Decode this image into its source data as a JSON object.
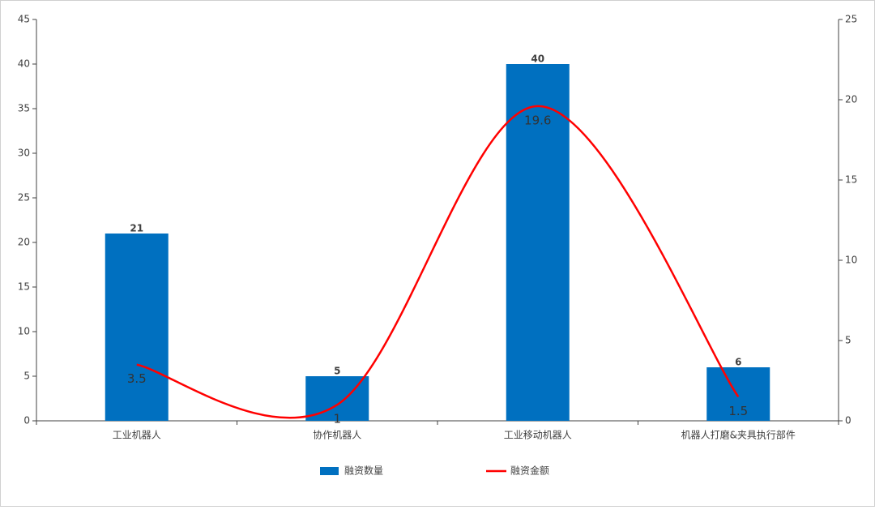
{
  "chart_data": {
    "type": "bar",
    "categories": [
      "工业机器人",
      "协作机器人",
      "工业移动机器人",
      "机器人打磨&夹具执行部件"
    ],
    "series": [
      {
        "name": "融资数量",
        "type": "bar",
        "color": "#0070c0",
        "values": [
          21,
          5,
          40,
          6
        ]
      },
      {
        "name": "融资金额",
        "type": "line",
        "axis": "y2",
        "color": "#ff0000",
        "values": [
          3.5,
          1,
          19.6,
          1.5
        ]
      }
    ],
    "ylim": [
      0,
      45
    ],
    "yticks": [
      0,
      5,
      10,
      15,
      20,
      25,
      30,
      35,
      40,
      45
    ],
    "y2lim": [
      0,
      25
    ],
    "y2ticks": [
      0,
      5,
      10,
      15,
      20,
      25
    ],
    "grid": false,
    "legend": "bottom"
  }
}
